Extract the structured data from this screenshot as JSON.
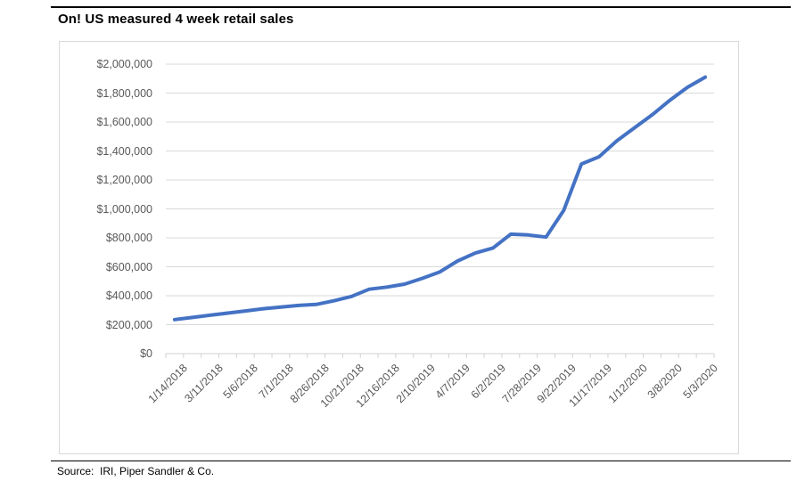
{
  "page": {
    "source_label": "Source:  IRI, Piper Sandler & Co."
  },
  "chart_data": {
    "type": "line",
    "title": "On! US measured 4 week retail sales",
    "x": [
      "1/14/2018",
      "2/11/2018",
      "3/11/2018",
      "4/8/2018",
      "5/6/2018",
      "6/3/2018",
      "7/1/2018",
      "7/29/2018",
      "8/26/2018",
      "9/23/2018",
      "10/21/2018",
      "11/18/2018",
      "12/16/2018",
      "1/13/2019",
      "2/10/2019",
      "3/10/2019",
      "4/7/2019",
      "5/5/2019",
      "6/2/2019",
      "6/30/2019",
      "7/28/2019",
      "8/25/2019",
      "9/22/2019",
      "10/20/2019",
      "11/17/2019",
      "12/15/2019",
      "1/12/2020",
      "2/9/2020",
      "3/8/2020",
      "4/5/2020",
      "5/3/2020"
    ],
    "values": [
      235000,
      250000,
      265000,
      280000,
      295000,
      310000,
      322000,
      333000,
      340000,
      365000,
      395000,
      445000,
      460000,
      480000,
      520000,
      565000,
      640000,
      695000,
      730000,
      825000,
      820000,
      805000,
      990000,
      1310000,
      1360000,
      1470000,
      1560000,
      1650000,
      1750000,
      1840000,
      1910000
    ],
    "x_tick_labels_shown": [
      "1/14/2018",
      "3/11/2018",
      "5/6/2018",
      "7/1/2018",
      "8/26/2018",
      "10/21/2018",
      "12/16/2018",
      "2/10/2019",
      "4/7/2019",
      "6/2/2019",
      "7/28/2019",
      "9/22/2019",
      "11/17/2019",
      "1/12/2020",
      "3/8/2020",
      "5/3/2020"
    ],
    "label_every": 2,
    "xlabel": "",
    "ylabel": "",
    "ylim": [
      0,
      2000000
    ],
    "y_tick_step": 200000,
    "y_tick_labels": [
      "$0",
      "$200,000",
      "$400,000",
      "$600,000",
      "$800,000",
      "$1,000,000",
      "$1,200,000",
      "$1,400,000",
      "$1,600,000",
      "$1,800,000",
      "$2,000,000"
    ],
    "grid": true,
    "legend": "none",
    "series_color": "#4472C4",
    "gridline_color": "#D9D9D9",
    "axis_color": "#D2D2D2",
    "tick_label_color": "#595959"
  }
}
